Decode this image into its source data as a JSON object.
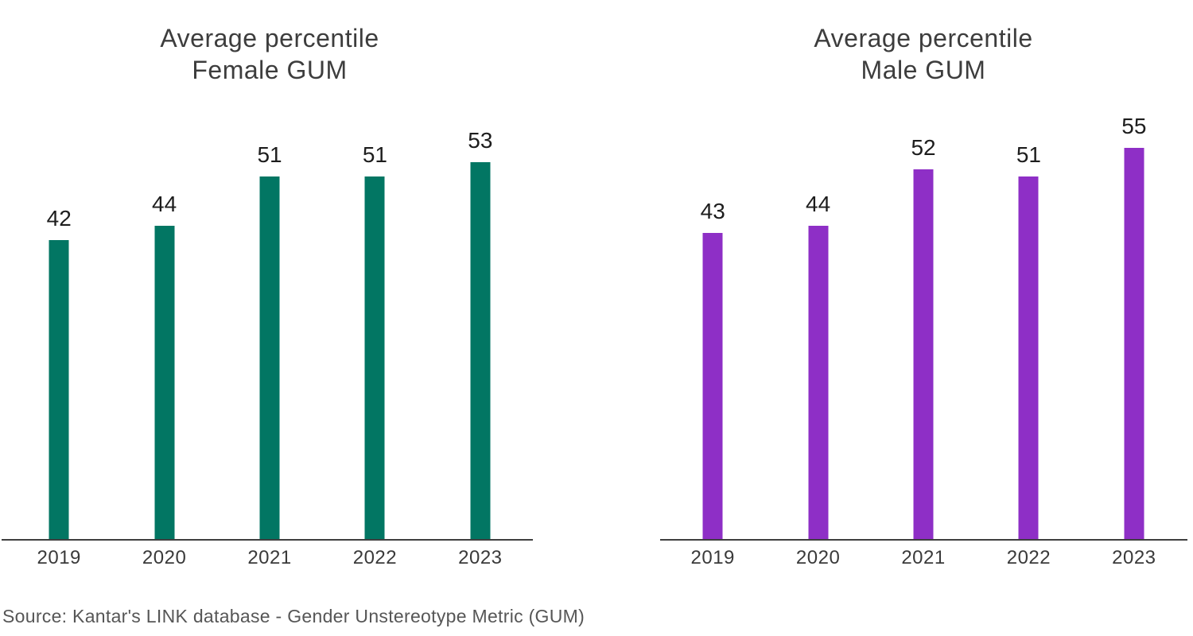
{
  "colors": {
    "background": "#ffffff",
    "female_bar": "#027663",
    "male_bar": "#8e2fc6",
    "axis_line": "#3f3f3f",
    "title_text": "#3d3d3d",
    "value_label_text": "#1d1d1d",
    "year_label_text": "#3a3a3a",
    "source_text": "#565656"
  },
  "source_note": "Source: Kantar's LINK database - Gender Unstereotype Metric (GUM)",
  "chart_data": [
    {
      "type": "bar",
      "title": "Average percentile Female GUM",
      "title_lines": [
        "Average percentile",
        "Female GUM"
      ],
      "categories": [
        "2019",
        "2020",
        "2021",
        "2022",
        "2023"
      ],
      "values": [
        42,
        44,
        51,
        51,
        53
      ],
      "bar_color": "#027663",
      "value_labels_shown": true,
      "xlabel": "",
      "ylabel": "",
      "ylim": [
        0,
        60
      ],
      "grid": false,
      "legend": "none"
    },
    {
      "type": "bar",
      "title": "Average percentile Male GUM",
      "title_lines": [
        "Average percentile",
        "Male GUM"
      ],
      "categories": [
        "2019",
        "2020",
        "2021",
        "2022",
        "2023"
      ],
      "values": [
        43,
        44,
        52,
        51,
        55
      ],
      "bar_color": "#8e2fc6",
      "value_labels_shown": true,
      "xlabel": "",
      "ylabel": "",
      "ylim": [
        0,
        60
      ],
      "grid": false,
      "legend": "none"
    }
  ]
}
